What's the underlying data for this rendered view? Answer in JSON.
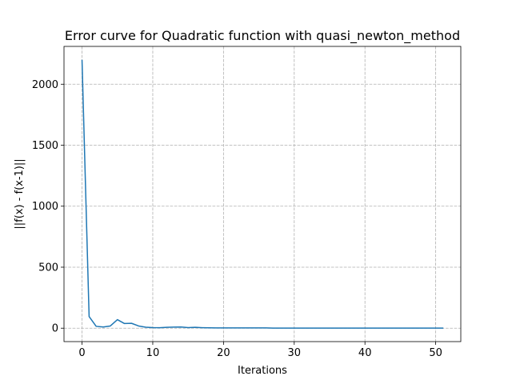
{
  "chart_data": {
    "type": "line",
    "title": "Error curve for Quadratic function with quasi_newton_method",
    "xlabel": "Iterations",
    "ylabel": "||f(x) - f(x-1)||",
    "xlim": [
      -2.55,
      53.55
    ],
    "ylim": [
      -110,
      2310
    ],
    "xticks": [
      0,
      10,
      20,
      30,
      40,
      50
    ],
    "yticks": [
      0,
      500,
      1000,
      1500,
      2000
    ],
    "grid": true,
    "series": [
      {
        "color": "#1f77b4",
        "x": [
          0,
          1,
          2,
          3,
          4,
          5,
          6,
          7,
          8,
          9,
          10,
          11,
          12,
          13,
          14,
          15,
          16,
          17,
          18,
          19,
          20,
          21,
          22,
          23,
          24,
          25,
          26,
          27,
          28,
          29,
          30,
          31,
          32,
          33,
          34,
          35,
          36,
          37,
          38,
          39,
          40,
          41,
          42,
          43,
          44,
          45,
          46,
          47,
          48,
          49,
          50,
          51
        ],
        "y": [
          2195,
          95,
          15,
          10,
          18,
          70,
          38,
          40,
          18,
          8,
          5,
          4,
          7,
          9,
          10,
          5,
          7,
          4,
          3,
          2,
          2,
          2,
          2,
          2,
          2,
          2,
          2,
          1,
          1,
          1,
          1,
          1,
          1,
          1,
          1,
          1,
          1,
          1,
          1,
          1,
          1,
          1,
          1,
          1,
          1,
          1,
          1,
          1,
          1,
          1,
          1,
          1
        ]
      }
    ]
  }
}
